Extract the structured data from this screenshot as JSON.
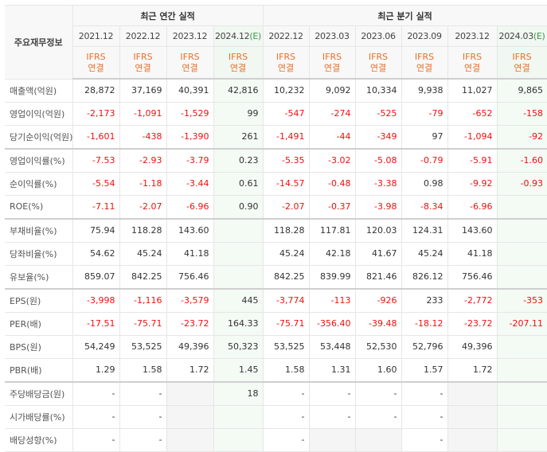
{
  "header": {
    "corner_label": "주요재무정보",
    "annual_group": "최근 연간 실적",
    "quarter_group": "최근 분기 실적",
    "ifrs_line1": "IFRS",
    "ifrs_line2": "연결",
    "estimate_mark": "(E)",
    "annual_periods": [
      {
        "label": "2021.12",
        "estimate": false
      },
      {
        "label": "2022.12",
        "estimate": false
      },
      {
        "label": "2023.12",
        "estimate": false
      },
      {
        "label": "2024.12",
        "estimate": true
      }
    ],
    "quarter_periods": [
      {
        "label": "2022.12",
        "estimate": false
      },
      {
        "label": "2023.03",
        "estimate": false
      },
      {
        "label": "2023.06",
        "estimate": false
      },
      {
        "label": "2023.09",
        "estimate": false
      },
      {
        "label": "2023.12",
        "estimate": false
      },
      {
        "label": "2024.03",
        "estimate": true
      }
    ]
  },
  "colors": {
    "negative": "#ee1111",
    "ifrs": "#e8702a",
    "estimate_bg": "#f4faf4",
    "estimate_mark": "#3a9a4a"
  },
  "rows": [
    {
      "label": "매출액(억원)",
      "annual": [
        "28,872",
        "37,169",
        "40,391",
        "42,816"
      ],
      "quarter": [
        "10,232",
        "9,092",
        "10,334",
        "9,938",
        "11,027",
        "9,865"
      ]
    },
    {
      "label": "영업이익(억원)",
      "annual": [
        "-2,173",
        "-1,091",
        "-1,529",
        "99"
      ],
      "quarter": [
        "-547",
        "-274",
        "-525",
        "-79",
        "-652",
        "-158"
      ]
    },
    {
      "label": "당기순이익(억원)",
      "annual": [
        "-1,601",
        "-438",
        "-1,390",
        "261"
      ],
      "quarter": [
        "-1,491",
        "-44",
        "-349",
        "97",
        "-1,094",
        "-92"
      ]
    },
    {
      "label": "영업이익률(%)",
      "annual": [
        "-7.53",
        "-2.93",
        "-3.79",
        "0.23"
      ],
      "quarter": [
        "-5.35",
        "-3.02",
        "-5.08",
        "-0.79",
        "-5.91",
        "-1.60"
      ]
    },
    {
      "label": "순이익률(%)",
      "annual": [
        "-5.54",
        "-1.18",
        "-3.44",
        "0.61"
      ],
      "quarter": [
        "-14.57",
        "-0.48",
        "-3.38",
        "0.98",
        "-9.92",
        "-0.93"
      ]
    },
    {
      "label": "ROE(%)",
      "annual": [
        "-7.11",
        "-2.07",
        "-6.96",
        "0.90"
      ],
      "quarter": [
        "-2.07",
        "-0.37",
        "-3.98",
        "-8.34",
        "-6.96",
        ""
      ]
    },
    {
      "label": "부채비율(%)",
      "annual": [
        "75.94",
        "118.28",
        "143.60",
        ""
      ],
      "quarter": [
        "118.28",
        "117.81",
        "120.03",
        "124.31",
        "143.60",
        ""
      ]
    },
    {
      "label": "당좌비율(%)",
      "annual": [
        "54.62",
        "45.24",
        "41.18",
        ""
      ],
      "quarter": [
        "45.24",
        "42.18",
        "41.67",
        "45.24",
        "41.18",
        ""
      ]
    },
    {
      "label": "유보율(%)",
      "annual": [
        "859.07",
        "842.25",
        "756.46",
        ""
      ],
      "quarter": [
        "842.25",
        "839.99",
        "821.46",
        "826.12",
        "756.46",
        ""
      ]
    },
    {
      "label": "EPS(원)",
      "annual": [
        "-3,998",
        "-1,116",
        "-3,579",
        "445"
      ],
      "quarter": [
        "-3,774",
        "-113",
        "-926",
        "233",
        "-2,772",
        "-353"
      ]
    },
    {
      "label": "PER(배)",
      "annual": [
        "-17.51",
        "-75.71",
        "-23.72",
        "164.33"
      ],
      "quarter": [
        "-75.71",
        "-356.40",
        "-39.48",
        "-18.12",
        "-23.72",
        "-207.11"
      ]
    },
    {
      "label": "BPS(원)",
      "annual": [
        "54,249",
        "53,525",
        "49,396",
        "50,323"
      ],
      "quarter": [
        "53,525",
        "53,448",
        "52,530",
        "52,796",
        "49,396",
        ""
      ]
    },
    {
      "label": "PBR(배)",
      "annual": [
        "1.29",
        "1.58",
        "1.72",
        "1.45"
      ],
      "quarter": [
        "1.58",
        "1.31",
        "1.60",
        "1.57",
        "1.72",
        ""
      ]
    },
    {
      "label": "주당배당금(원)",
      "annual": [
        "-",
        "-",
        null,
        "18"
      ],
      "quarter": [
        "-",
        "-",
        "-",
        "-",
        null,
        ""
      ]
    },
    {
      "label": "시가배당률(%)",
      "annual": [
        "-",
        "-",
        null,
        ""
      ],
      "quarter": [
        "-",
        "-",
        "-",
        "-",
        null,
        ""
      ]
    },
    {
      "label": "배당성향(%)",
      "annual": [
        "-",
        "-",
        null,
        ""
      ],
      "quarter": [
        "-",
        null,
        null,
        "-",
        null,
        ""
      ]
    }
  ]
}
